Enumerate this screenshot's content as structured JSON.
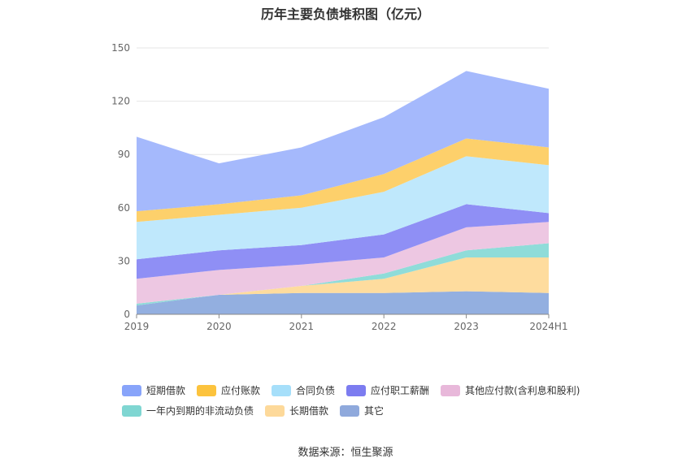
{
  "chart_data": {
    "type": "area",
    "stacked": true,
    "title": "历年主要负债堆积图（亿元）",
    "categories": [
      "2019",
      "2020",
      "2021",
      "2022",
      "2023",
      "2024H1"
    ],
    "ylim": [
      0,
      150
    ],
    "yticks": [
      0,
      30,
      60,
      90,
      120,
      150
    ],
    "grid": true,
    "legend_position": "bottom",
    "series": [
      {
        "name": "其它",
        "color": "#93afe0",
        "values": [
          5,
          11,
          12,
          12,
          13,
          12
        ]
      },
      {
        "name": "长期借款",
        "color": "#fedc9e",
        "values": [
          0,
          0,
          4,
          8,
          19,
          20
        ]
      },
      {
        "name": "一年内到期的非流动负债",
        "color": "#8fdcd9",
        "values": [
          1,
          0,
          0,
          3,
          4,
          8
        ]
      },
      {
        "name": "其他应付款(含利息和股利)",
        "color": "#edc7e2",
        "values": [
          14,
          14,
          12,
          9,
          13,
          12
        ]
      },
      {
        "name": "应付职工薪酬",
        "color": "#8f8ff5",
        "values": [
          11,
          11,
          11,
          13,
          13,
          5
        ]
      },
      {
        "name": "合同负债",
        "color": "#bfe8fc",
        "values": [
          21,
          20,
          21,
          24,
          27,
          27
        ]
      },
      {
        "name": "应付账款",
        "color": "#fdd06b",
        "values": [
          6,
          6,
          7,
          10,
          10,
          10
        ]
      },
      {
        "name": "短期借款",
        "color": "#a5b9fc",
        "values": [
          42,
          23,
          27,
          32,
          38,
          33
        ]
      }
    ],
    "legend_order": [
      "短期借款",
      "应付账款",
      "合同负债",
      "应付职工薪酬",
      "其他应付款(含利息和股利)",
      "一年内到期的非流动负债",
      "长期借款",
      "其它"
    ],
    "legend_colors": {
      "短期借款": "#88a4fa",
      "应付账款": "#fcc33d",
      "合同负债": "#a6dffa",
      "应付职工薪酬": "#7c7cf0",
      "其他应付款(含利息和股利)": "#e8b8da",
      "一年内到期的非流动负债": "#7fd6d2",
      "长期借款": "#fdd99a",
      "其它": "#8fa9dc"
    }
  },
  "footer": {
    "source": "数据来源：恒生聚源"
  }
}
